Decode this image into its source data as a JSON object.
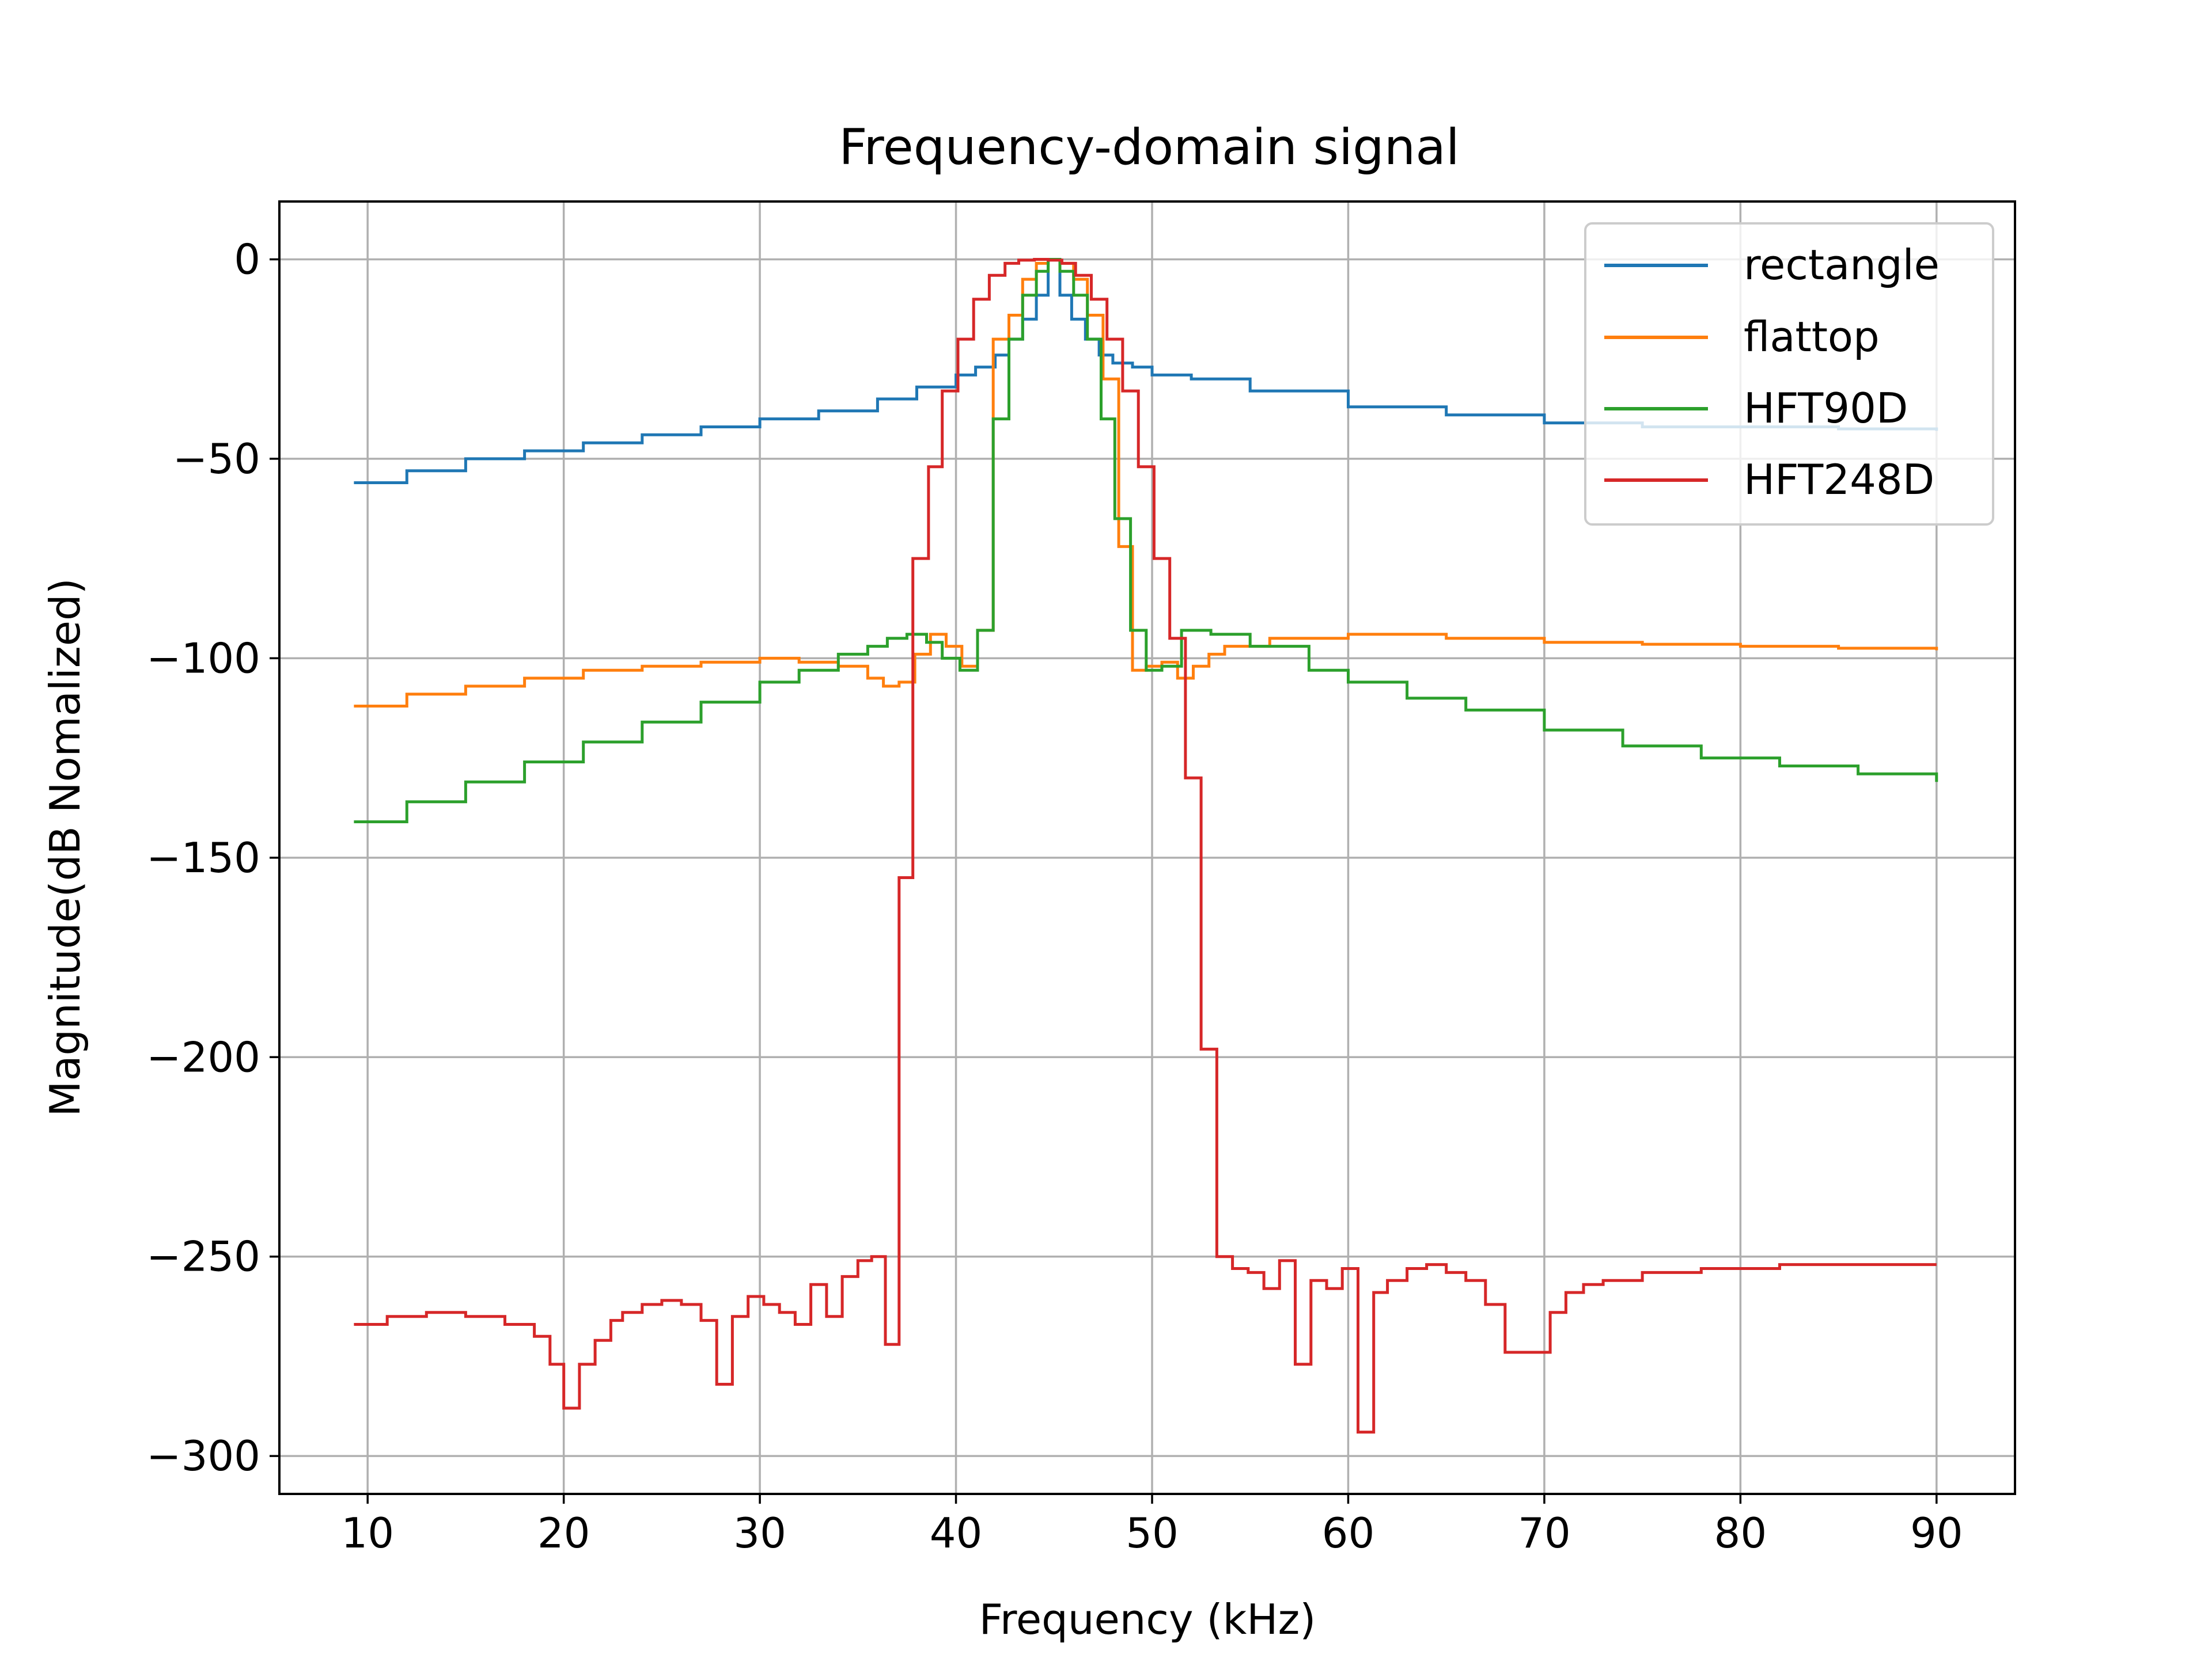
{
  "chart_data": {
    "type": "line",
    "title": "Frequency-domain signal",
    "xlabel": "Frequency (kHz)",
    "ylabel": "Magnitude(dB Nomalized)",
    "xlim": [
      5.5,
      94
    ],
    "ylim": [
      -309.5,
      14.5
    ],
    "xticks": [
      10,
      20,
      30,
      40,
      50,
      60,
      70,
      80,
      90
    ],
    "yticks": [
      0,
      -50,
      -100,
      -150,
      -200,
      -250,
      -300
    ],
    "xtick_labels": [
      "10",
      "20",
      "30",
      "40",
      "50",
      "60",
      "70",
      "80",
      "90"
    ],
    "ytick_labels": [
      "0",
      "−50",
      "−100",
      "−150",
      "−200",
      "−250",
      "−300"
    ],
    "grid": true,
    "legend_position": "top-right",
    "step_style": "post",
    "series": [
      {
        "name": "rectangle",
        "color": "#1f77b4",
        "x": [
          9.3,
          12,
          15,
          18,
          21,
          24,
          27,
          30,
          33,
          36,
          38,
          40,
          41,
          42,
          42.7,
          43.4,
          44.1,
          44.7,
          45.3,
          45.9,
          46.6,
          47.3,
          48,
          49,
          50,
          52,
          55,
          60,
          65,
          70,
          75,
          80,
          85,
          90
        ],
        "y": [
          -56,
          -53,
          -50,
          -48,
          -46,
          -44,
          -42,
          -40,
          -38,
          -35,
          -32,
          -29,
          -27,
          -24,
          -20,
          -15,
          -9,
          0,
          -9,
          -15,
          -20,
          -24,
          -26,
          -27,
          -29,
          -30,
          -33,
          -37,
          -39,
          -41,
          -42,
          -42,
          -42.5,
          -43
        ]
      },
      {
        "name": "flattop",
        "color": "#ff7f0e",
        "x": [
          9.3,
          12,
          15,
          18,
          21,
          24,
          27,
          30,
          32,
          34,
          35.5,
          36.3,
          37.1,
          37.9,
          38.7,
          39.5,
          40.3,
          41.1,
          41.9,
          42.7,
          43.4,
          44.1,
          44.7,
          45.3,
          46,
          46.7,
          47.5,
          48.3,
          49,
          49.7,
          50.5,
          51.3,
          52.1,
          52.9,
          53.7,
          56,
          60,
          65,
          70,
          75,
          80,
          85,
          90
        ],
        "y": [
          -112,
          -109,
          -107,
          -105,
          -103,
          -102,
          -101,
          -100,
          -101,
          -102,
          -105,
          -107,
          -106,
          -99,
          -94,
          -97,
          -102,
          -93,
          -20,
          -14,
          -5,
          -1,
          0,
          -1,
          -5,
          -14,
          -30,
          -72,
          -103,
          -102,
          -101,
          -105,
          -102,
          -99,
          -97,
          -95,
          -94,
          -95,
          -96,
          -96.5,
          -97,
          -97.5,
          -98
        ]
      },
      {
        "name": "HFT90D",
        "color": "#2ca02c",
        "x": [
          9.3,
          12,
          15,
          18,
          21,
          24,
          27,
          30,
          32,
          34,
          35.5,
          36.5,
          37.5,
          38.5,
          39.3,
          40.2,
          41.1,
          41.9,
          42.7,
          43.4,
          44.1,
          44.7,
          45.3,
          46,
          46.7,
          47.4,
          48.1,
          48.9,
          49.7,
          50.5,
          51.5,
          53,
          55,
          58,
          60,
          63,
          66,
          70,
          74,
          78,
          82,
          86,
          90
        ],
        "y": [
          -141,
          -136,
          -131,
          -126,
          -121,
          -116,
          -111,
          -106,
          -103,
          -99,
          -97,
          -95,
          -94,
          -96,
          -100,
          -103,
          -93,
          -40,
          -20,
          -9,
          -3,
          0,
          -3,
          -9,
          -20,
          -40,
          -65,
          -93,
          -103,
          -102,
          -93,
          -94,
          -97,
          -103,
          -106,
          -110,
          -113,
          -118,
          -122,
          -125,
          -127,
          -129,
          -131
        ]
      },
      {
        "name": "HFT248D",
        "color": "#d62728",
        "x": [
          9.3,
          11,
          13,
          15,
          17,
          18.5,
          19.3,
          20,
          20.8,
          21.6,
          22.4,
          23,
          24,
          25,
          26,
          27,
          27.8,
          28.6,
          29.4,
          30.2,
          31,
          31.8,
          32.6,
          33.4,
          34.2,
          35,
          35.7,
          36.4,
          37.1,
          37.8,
          38.6,
          39.3,
          40.1,
          40.9,
          41.7,
          42.5,
          43.2,
          44,
          44.7,
          45.4,
          46.1,
          46.9,
          47.7,
          48.5,
          49.3,
          50.1,
          50.9,
          51.7,
          52.5,
          53.3,
          54.1,
          54.9,
          55.7,
          56.5,
          57.3,
          58.1,
          58.9,
          59.7,
          60.5,
          61.3,
          62,
          63,
          64,
          65,
          66,
          67,
          68,
          68.7,
          69.5,
          70.3,
          71.1,
          72,
          73,
          75,
          78,
          82,
          86,
          90
        ],
        "y": [
          -267,
          -265,
          -264,
          -265,
          -267,
          -270,
          -277,
          -288,
          -277,
          -271,
          -266,
          -264,
          -262,
          -261,
          -262,
          -266,
          -282,
          -265,
          -260,
          -262,
          -264,
          -267,
          -257,
          -265,
          -255,
          -251,
          -250,
          -272,
          -155,
          -75,
          -52,
          -33,
          -20,
          -10,
          -4,
          -1,
          -0.2,
          0,
          -0.2,
          -1,
          -4,
          -10,
          -20,
          -33,
          -52,
          -75,
          -95,
          -130,
          -198,
          -250,
          -253,
          -254,
          -258,
          -251,
          -277,
          -256,
          -258,
          -253,
          -294,
          -259,
          -256,
          -253,
          -252,
          -254,
          -256,
          -262,
          -274,
          -274,
          -274,
          -264,
          -259,
          -257,
          -256,
          -254,
          -253,
          -252,
          -252,
          -252
        ]
      }
    ]
  }
}
